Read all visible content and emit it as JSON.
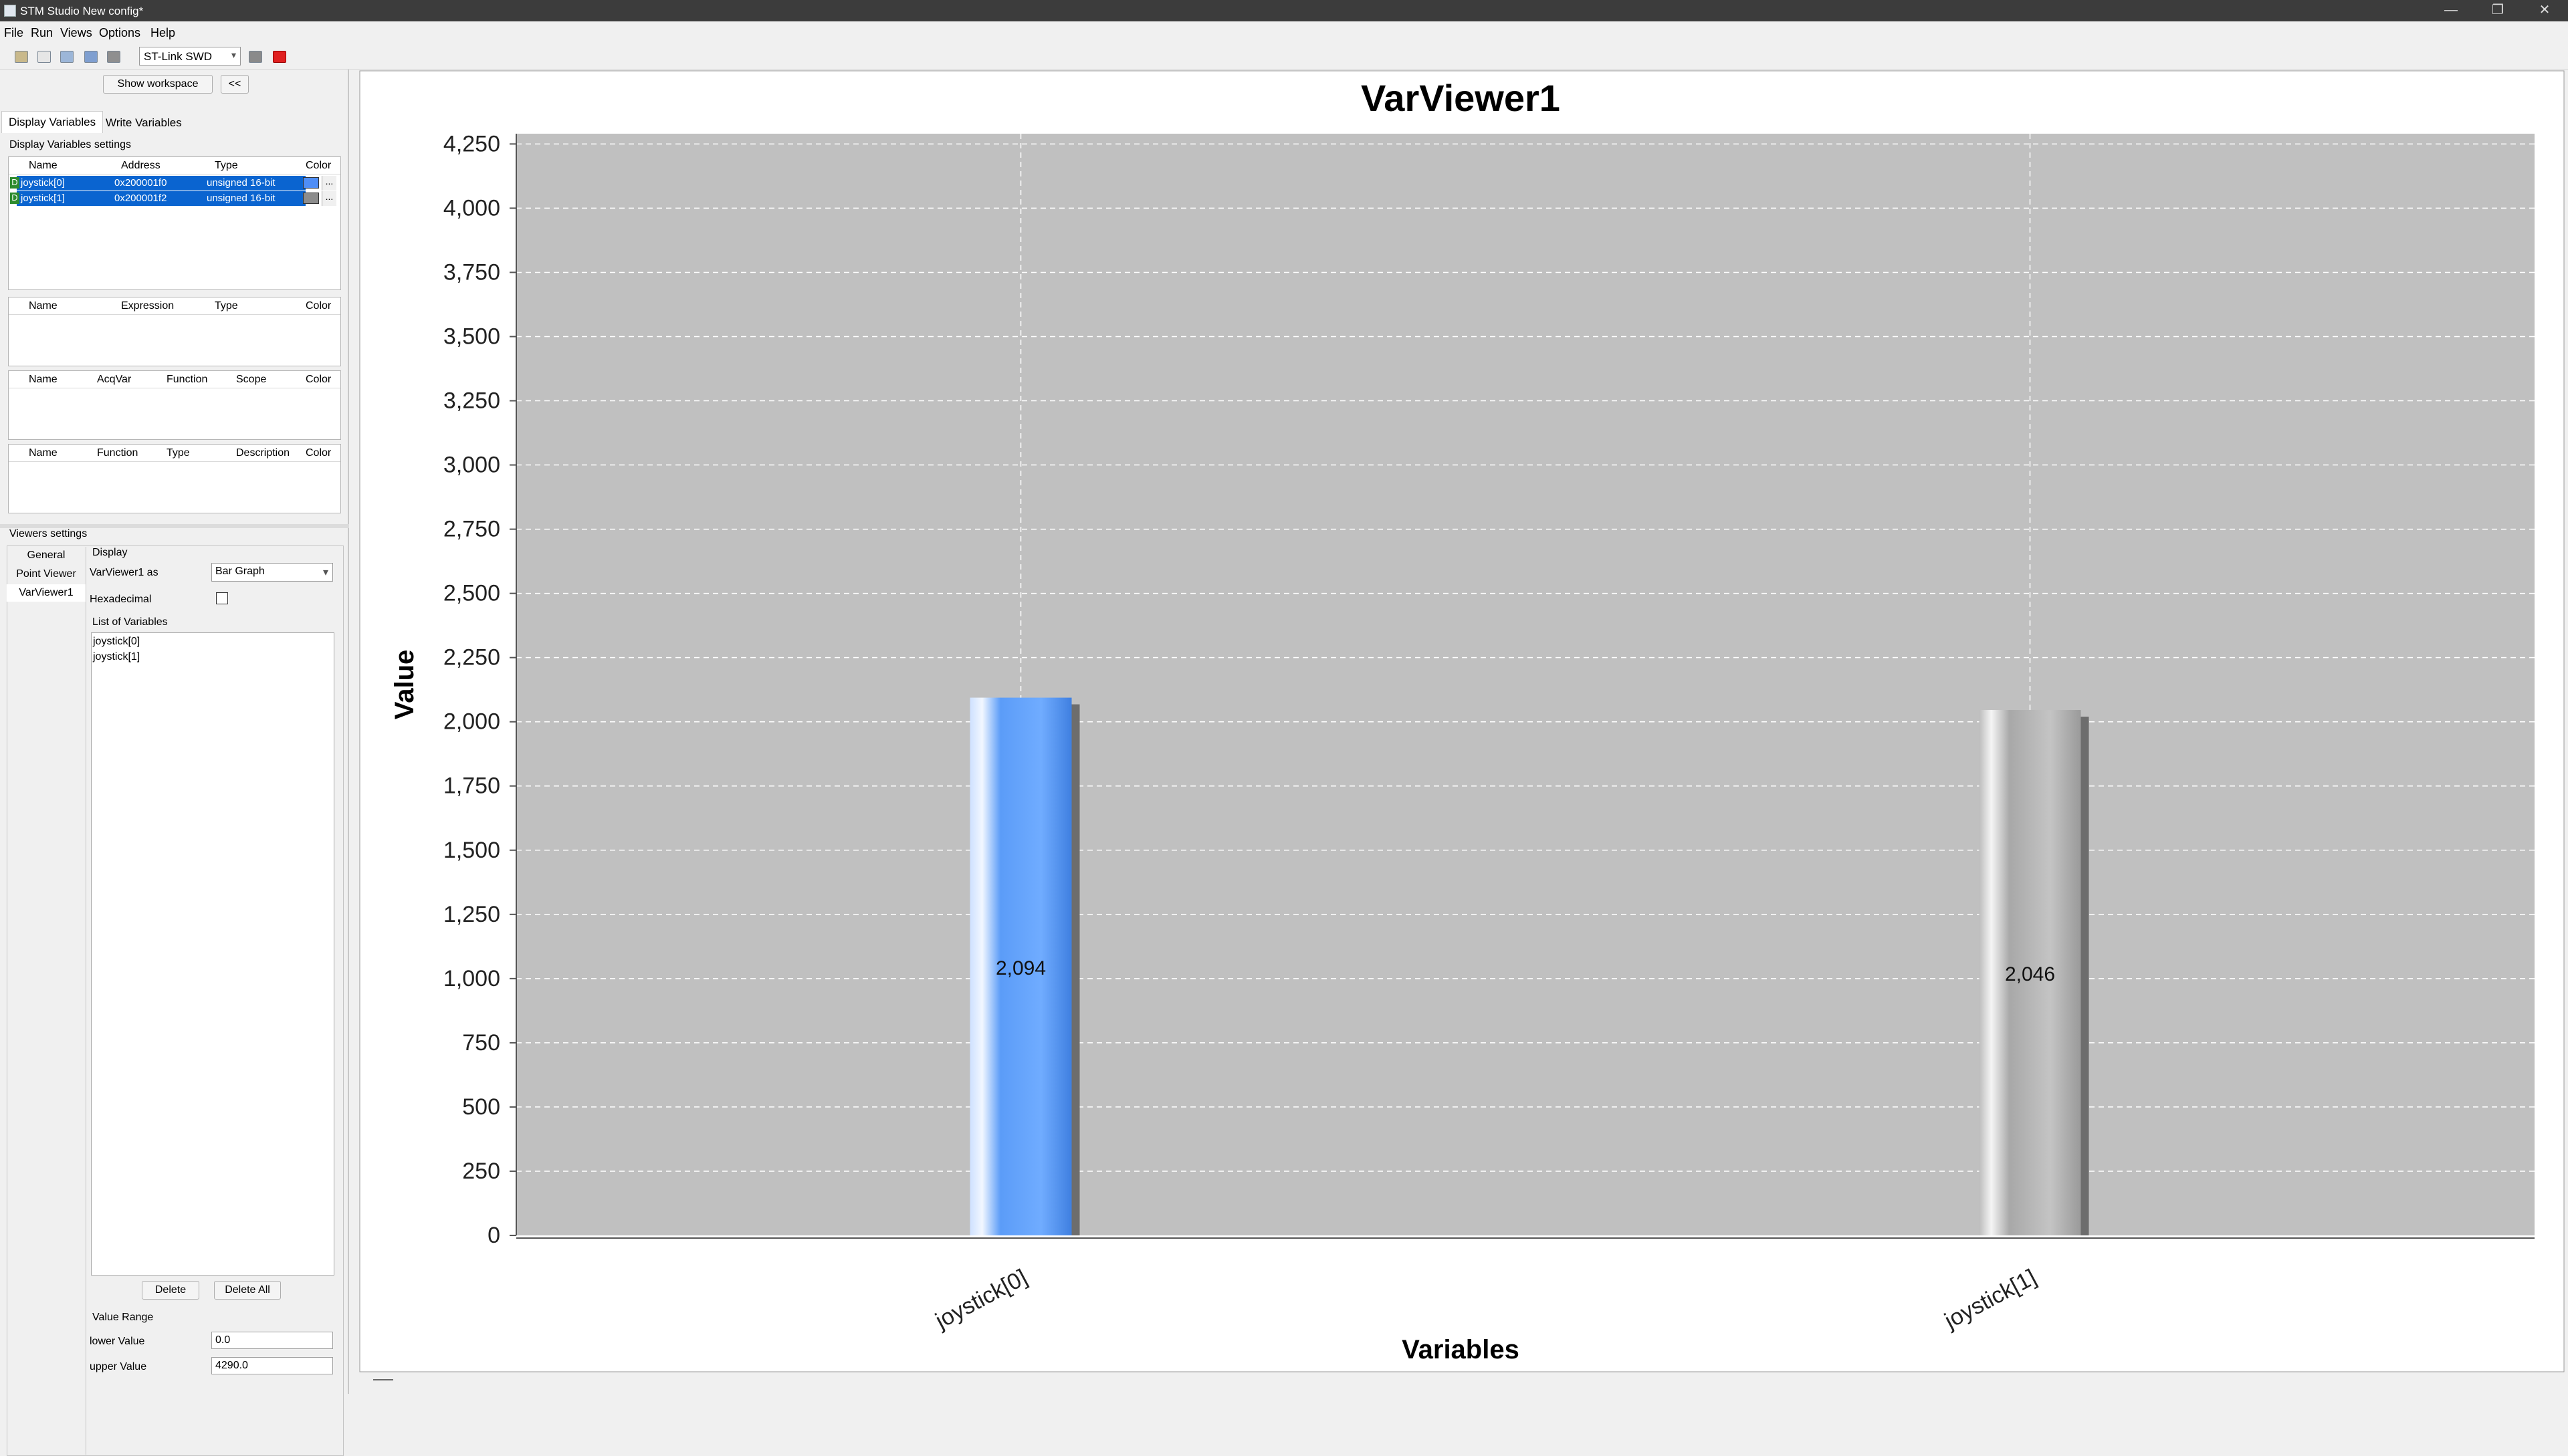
{
  "window": {
    "title": "STM Studio New config*",
    "controls": [
      "—",
      "❐",
      "✕"
    ]
  },
  "menu": [
    "File",
    "Run",
    "Views",
    "Options",
    "Help"
  ],
  "toolbar": {
    "probe": "ST-Link SWD",
    "icons": [
      "open-folder-icon",
      "new-file-icon",
      "import-icon",
      "save-icon",
      "save-as-icon",
      "stop-gray-icon",
      "stop-red-icon"
    ]
  },
  "workspace": {
    "show_button": "Show workspace",
    "collapse_button": "<<"
  },
  "tabs": [
    "Display Variables",
    "Write Variables"
  ],
  "display_settings": {
    "title": "Display Variables settings",
    "var_headers": [
      "Name",
      "Address",
      "Type",
      "Color"
    ],
    "vars": [
      {
        "badge": "D",
        "name": "joystick[0]",
        "address": "0x200001f0",
        "type": "unsigned 16-bit",
        "color": "#4f8ef7",
        "more": "..."
      },
      {
        "badge": "D",
        "name": "joystick[1]",
        "address": "0x200001f2",
        "type": "unsigned 16-bit",
        "color": "#8c8c8c",
        "more": "..."
      }
    ],
    "expr_headers": [
      "Name",
      "Expression",
      "Type",
      "Color"
    ],
    "acq_headers": [
      "Name",
      "AcqVar",
      "Function",
      "Scope",
      "Color"
    ],
    "func_headers": [
      "Name",
      "Function",
      "Type",
      "Description",
      "Color"
    ]
  },
  "viewers": {
    "title": "Viewers settings",
    "tabs": [
      "General",
      "Point Viewer",
      "VarViewer1"
    ],
    "display_group": "Display",
    "view_as_label": "VarViewer1 as",
    "view_as_value": "Bar Graph",
    "hex_label": "Hexadecimal",
    "hex_checked": false,
    "list_title": "List of Variables",
    "list": [
      "joystick[0]",
      "joystick[1]"
    ],
    "delete": "Delete",
    "delete_all": "Delete All",
    "range_title": "Value Range",
    "lower_label": "lower Value",
    "lower_value": "0.0",
    "upper_label": "upper Value",
    "upper_value": "4290.0"
  },
  "chart_data": {
    "type": "bar",
    "title": "VarViewer1",
    "xlabel": "Variables",
    "ylabel": "Value",
    "categories": [
      "joystick[0]",
      "joystick[1]"
    ],
    "values": [
      2094,
      2046
    ],
    "value_labels": [
      "2,094",
      "2,046"
    ],
    "colors": [
      "#5a9cf8",
      "#b0b0b0"
    ],
    "ylim": [
      0,
      4290
    ],
    "yticks": [
      0,
      250,
      500,
      750,
      1000,
      1250,
      1500,
      1750,
      2000,
      2250,
      2500,
      2750,
      3000,
      3250,
      3500,
      3750,
      4000,
      4250
    ],
    "ytick_labels": [
      "0",
      "250",
      "500",
      "750",
      "1,000",
      "1,250",
      "1,500",
      "1,750",
      "2,000",
      "2,250",
      "2,500",
      "2,750",
      "3,000",
      "3,250",
      "3,500",
      "3,750",
      "4,000",
      "4,250"
    ],
    "grid": true
  }
}
